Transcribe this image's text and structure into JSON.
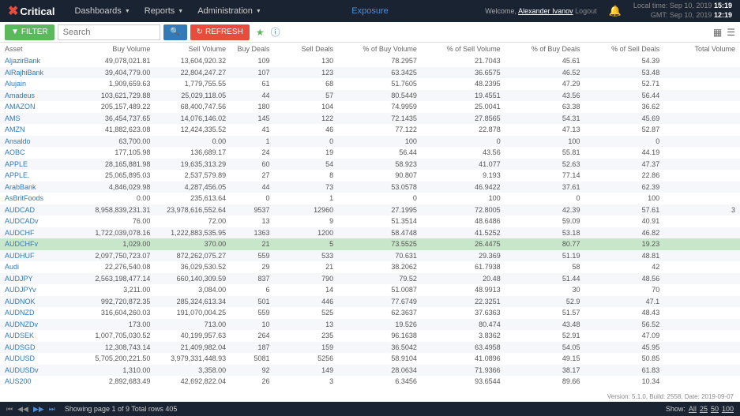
{
  "header": {
    "brand": "Critical",
    "nav": [
      "Dashboards",
      "Reports",
      "Administration"
    ],
    "center": "Exposure",
    "welcome_prefix": "Welcome, ",
    "user_name": "Alexander Ivanov",
    "logout": "Logout",
    "local_label": "Local time:",
    "local_date": "Sep 10, 2019",
    "local_time": "15:19",
    "gmt_label": "GMT:",
    "gmt_date": "Sep 10, 2019",
    "gmt_time": "12:19"
  },
  "toolbar": {
    "filter": "FILTER",
    "search_placeholder": "Search",
    "refresh": "REFRESH"
  },
  "columns": [
    "Asset",
    "Buy Volume",
    "Sell Volume",
    "Buy Deals",
    "Sell Deals",
    "% of Buy Volume",
    "% of Sell Volume",
    "% of Buy Deals",
    "% of Sell Deals",
    "Total Volume"
  ],
  "rows": [
    {
      "c": [
        "AljazirBank",
        "49,078,021.81",
        "13,604,920.32",
        "109",
        "130",
        "78.2957",
        "21.7043",
        "45.61",
        "54.39",
        ""
      ]
    },
    {
      "c": [
        "AlRajhiBank",
        "39,404,779.00",
        "22,804,247.27",
        "107",
        "123",
        "63.3425",
        "36.6575",
        "46.52",
        "53.48",
        ""
      ]
    },
    {
      "c": [
        "Alujain",
        "1,909,659.63",
        "1,779,755.55",
        "61",
        "68",
        "51.7605",
        "48.2395",
        "47.29",
        "52.71",
        ""
      ]
    },
    {
      "c": [
        "Amadeus",
        "103,621,729.88",
        "25,029,118.05",
        "44",
        "57",
        "80.5449",
        "19.4551",
        "43.56",
        "56.44",
        ""
      ]
    },
    {
      "c": [
        "AMAZON",
        "205,157,489.22",
        "68,400,747.56",
        "180",
        "104",
        "74.9959",
        "25.0041",
        "63.38",
        "36.62",
        ""
      ]
    },
    {
      "c": [
        "AMS",
        "36,454,737.65",
        "14,076,146.02",
        "145",
        "122",
        "72.1435",
        "27.8565",
        "54.31",
        "45.69",
        ""
      ]
    },
    {
      "c": [
        "AMZN",
        "41,882,623.08",
        "12,424,335.52",
        "41",
        "46",
        "77.122",
        "22.878",
        "47.13",
        "52.87",
        ""
      ]
    },
    {
      "c": [
        "Ansaldo",
        "63,700.00",
        "0.00",
        "1",
        "0",
        "100",
        "0",
        "100",
        "0",
        ""
      ]
    },
    {
      "c": [
        "AOBC",
        "177,105.98",
        "136,689.17",
        "24",
        "19",
        "56.44",
        "43.56",
        "55.81",
        "44.19",
        ""
      ]
    },
    {
      "c": [
        "APPLE",
        "28,165,881.98",
        "19,635,313.29",
        "60",
        "54",
        "58.923",
        "41.077",
        "52.63",
        "47.37",
        ""
      ]
    },
    {
      "c": [
        "APPLE.",
        "25,065,895.03",
        "2,537,579.89",
        "27",
        "8",
        "90.807",
        "9.193",
        "77.14",
        "22.86",
        ""
      ]
    },
    {
      "c": [
        "ArabBank",
        "4,846,029.98",
        "4,287,456.05",
        "44",
        "73",
        "53.0578",
        "46.9422",
        "37.61",
        "62.39",
        ""
      ]
    },
    {
      "c": [
        "AsBritFoods",
        "0.00",
        "235,613.64",
        "0",
        "1",
        "0",
        "100",
        "0",
        "100",
        ""
      ]
    },
    {
      "c": [
        "AUDCAD",
        "8,958,839,231.31",
        "23,978,616,552.64",
        "9537",
        "12960",
        "27.1995",
        "72.8005",
        "42.39",
        "57.61",
        "3"
      ]
    },
    {
      "c": [
        "AUDCADv",
        "76.00",
        "72.00",
        "13",
        "9",
        "51.3514",
        "48.6486",
        "59.09",
        "40.91",
        ""
      ]
    },
    {
      "c": [
        "AUDCHF",
        "1,722,039,078.16",
        "1,222,883,535.95",
        "1363",
        "1200",
        "58.4748",
        "41.5252",
        "53.18",
        "46.82",
        ""
      ]
    },
    {
      "c": [
        "AUDCHFv",
        "1,029.00",
        "370.00",
        "21",
        "5",
        "73.5525",
        "26.4475",
        "80.77",
        "19.23",
        ""
      ],
      "hl": true
    },
    {
      "c": [
        "AUDHUF",
        "2,097,750,723.07",
        "872,262,075.27",
        "559",
        "533",
        "70.631",
        "29.369",
        "51.19",
        "48.81",
        ""
      ]
    },
    {
      "c": [
        "Audi",
        "22,276,540.08",
        "36,029,530.52",
        "29",
        "21",
        "38.2062",
        "61.7938",
        "58",
        "42",
        ""
      ]
    },
    {
      "c": [
        "AUDJPY",
        "2,563,198,477.14",
        "660,140,309.59",
        "837",
        "790",
        "79.52",
        "20.48",
        "51.44",
        "48.56",
        ""
      ]
    },
    {
      "c": [
        "AUDJPYv",
        "3,211.00",
        "3,084.00",
        "6",
        "14",
        "51.0087",
        "48.9913",
        "30",
        "70",
        ""
      ]
    },
    {
      "c": [
        "AUDNOK",
        "992,720,872.35",
        "285,324,613.34",
        "501",
        "446",
        "77.6749",
        "22.3251",
        "52.9",
        "47.1",
        ""
      ]
    },
    {
      "c": [
        "AUDNZD",
        "316,604,260.03",
        "191,070,004.25",
        "559",
        "525",
        "62.3637",
        "37.6363",
        "51.57",
        "48.43",
        ""
      ]
    },
    {
      "c": [
        "AUDNZDv",
        "173.00",
        "713.00",
        "10",
        "13",
        "19.526",
        "80.474",
        "43.48",
        "56.52",
        ""
      ]
    },
    {
      "c": [
        "AUDSEK",
        "1,007,705,030.52",
        "40,199,957.63",
        "264",
        "235",
        "96.1638",
        "3.8362",
        "52.91",
        "47.09",
        ""
      ]
    },
    {
      "c": [
        "AUDSGD",
        "12,308,743.14",
        "21,409,982.04",
        "187",
        "159",
        "36.5042",
        "63.4958",
        "54.05",
        "45.95",
        ""
      ]
    },
    {
      "c": [
        "AUDUSD",
        "5,705,200,221.50",
        "3,979,331,448.93",
        "5081",
        "5256",
        "58.9104",
        "41.0896",
        "49.15",
        "50.85",
        ""
      ]
    },
    {
      "c": [
        "AUDUSDv",
        "1,310.00",
        "3,358.00",
        "92",
        "149",
        "28.0634",
        "71.9366",
        "38.17",
        "61.83",
        ""
      ]
    },
    {
      "c": [
        "AUS200",
        "2,892,683.49",
        "42,692,822.04",
        "26",
        "3",
        "6.3456",
        "93.6544",
        "89.66",
        "10.34",
        ""
      ]
    }
  ],
  "footer": {
    "page_info": "Showing page 1 of 9 Total rows 405",
    "show_label": "Show:",
    "sizes": [
      "All",
      "25",
      "50",
      "100"
    ]
  },
  "version": "Version: 5.1.0, Build: 2558, Date: 2019-09-07",
  "colors": {
    "topbar_bg": "#1a2332",
    "accent_red": "#e74c3c",
    "accent_green": "#5cb85c",
    "accent_blue": "#337ab7",
    "row_highlight": "#c8e6c9"
  }
}
